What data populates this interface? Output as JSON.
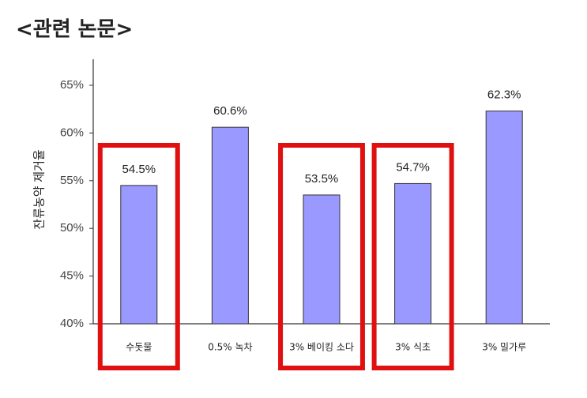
{
  "chart_data": {
    "type": "bar",
    "title": "<관련 논문>",
    "y_label": "잔류농약 제거율",
    "categories": [
      "수돗물",
      "0.5% 녹차",
      "3% 베이킹 소다",
      "3% 식초",
      "3% 밀가루"
    ],
    "values": [
      54.5,
      60.6,
      53.5,
      54.7,
      62.3
    ],
    "value_labels": [
      "54.5%",
      "60.6%",
      "53.5%",
      "54.7%",
      "62.3%"
    ],
    "highlight": [
      true,
      false,
      true,
      true,
      false
    ],
    "color": "#9999ff",
    "highlight_color": "#e01010",
    "ylim": [
      40,
      65
    ],
    "yticks": [
      {
        "value": 40,
        "label": "40%"
      },
      {
        "value": 45,
        "label": "45%"
      },
      {
        "value": 50,
        "label": "50%"
      },
      {
        "value": 55,
        "label": "55%"
      },
      {
        "value": 60,
        "label": "60%"
      },
      {
        "value": 65,
        "label": "65%"
      }
    ],
    "grid": false
  }
}
